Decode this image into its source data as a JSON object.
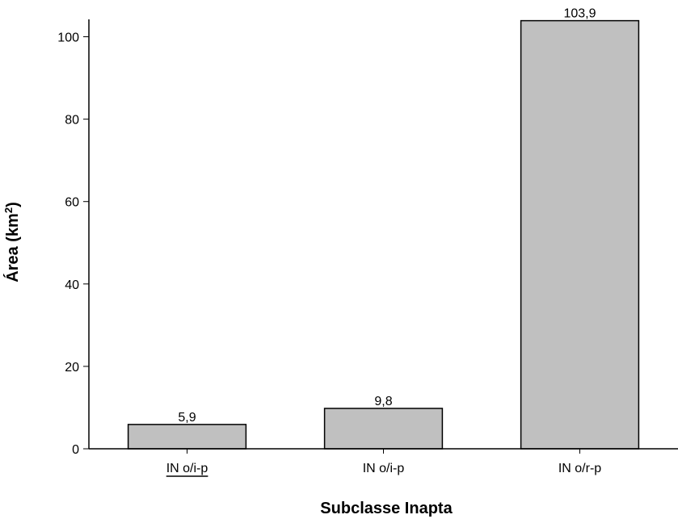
{
  "chart_data": {
    "type": "bar",
    "categories": [
      "IN o/i-p",
      "IN o/i-p",
      "IN o/r-p"
    ],
    "values": [
      5.9,
      9.8,
      103.9
    ],
    "data_labels": [
      "5,9",
      "9,8",
      "103,9"
    ],
    "xlabel": "Subclasse Inapta",
    "ylabel": "Área (km",
    "ylabel_superscript": "2",
    "ylabel_close": ")",
    "ylim": [
      0,
      105
    ],
    "yticks": [
      0,
      20,
      40,
      60,
      80,
      100
    ],
    "grid": false,
    "legend": "none",
    "colors": {
      "bar_fill": "#c0c0c0",
      "bar_stroke": "#000000",
      "axis": "#000000"
    }
  }
}
